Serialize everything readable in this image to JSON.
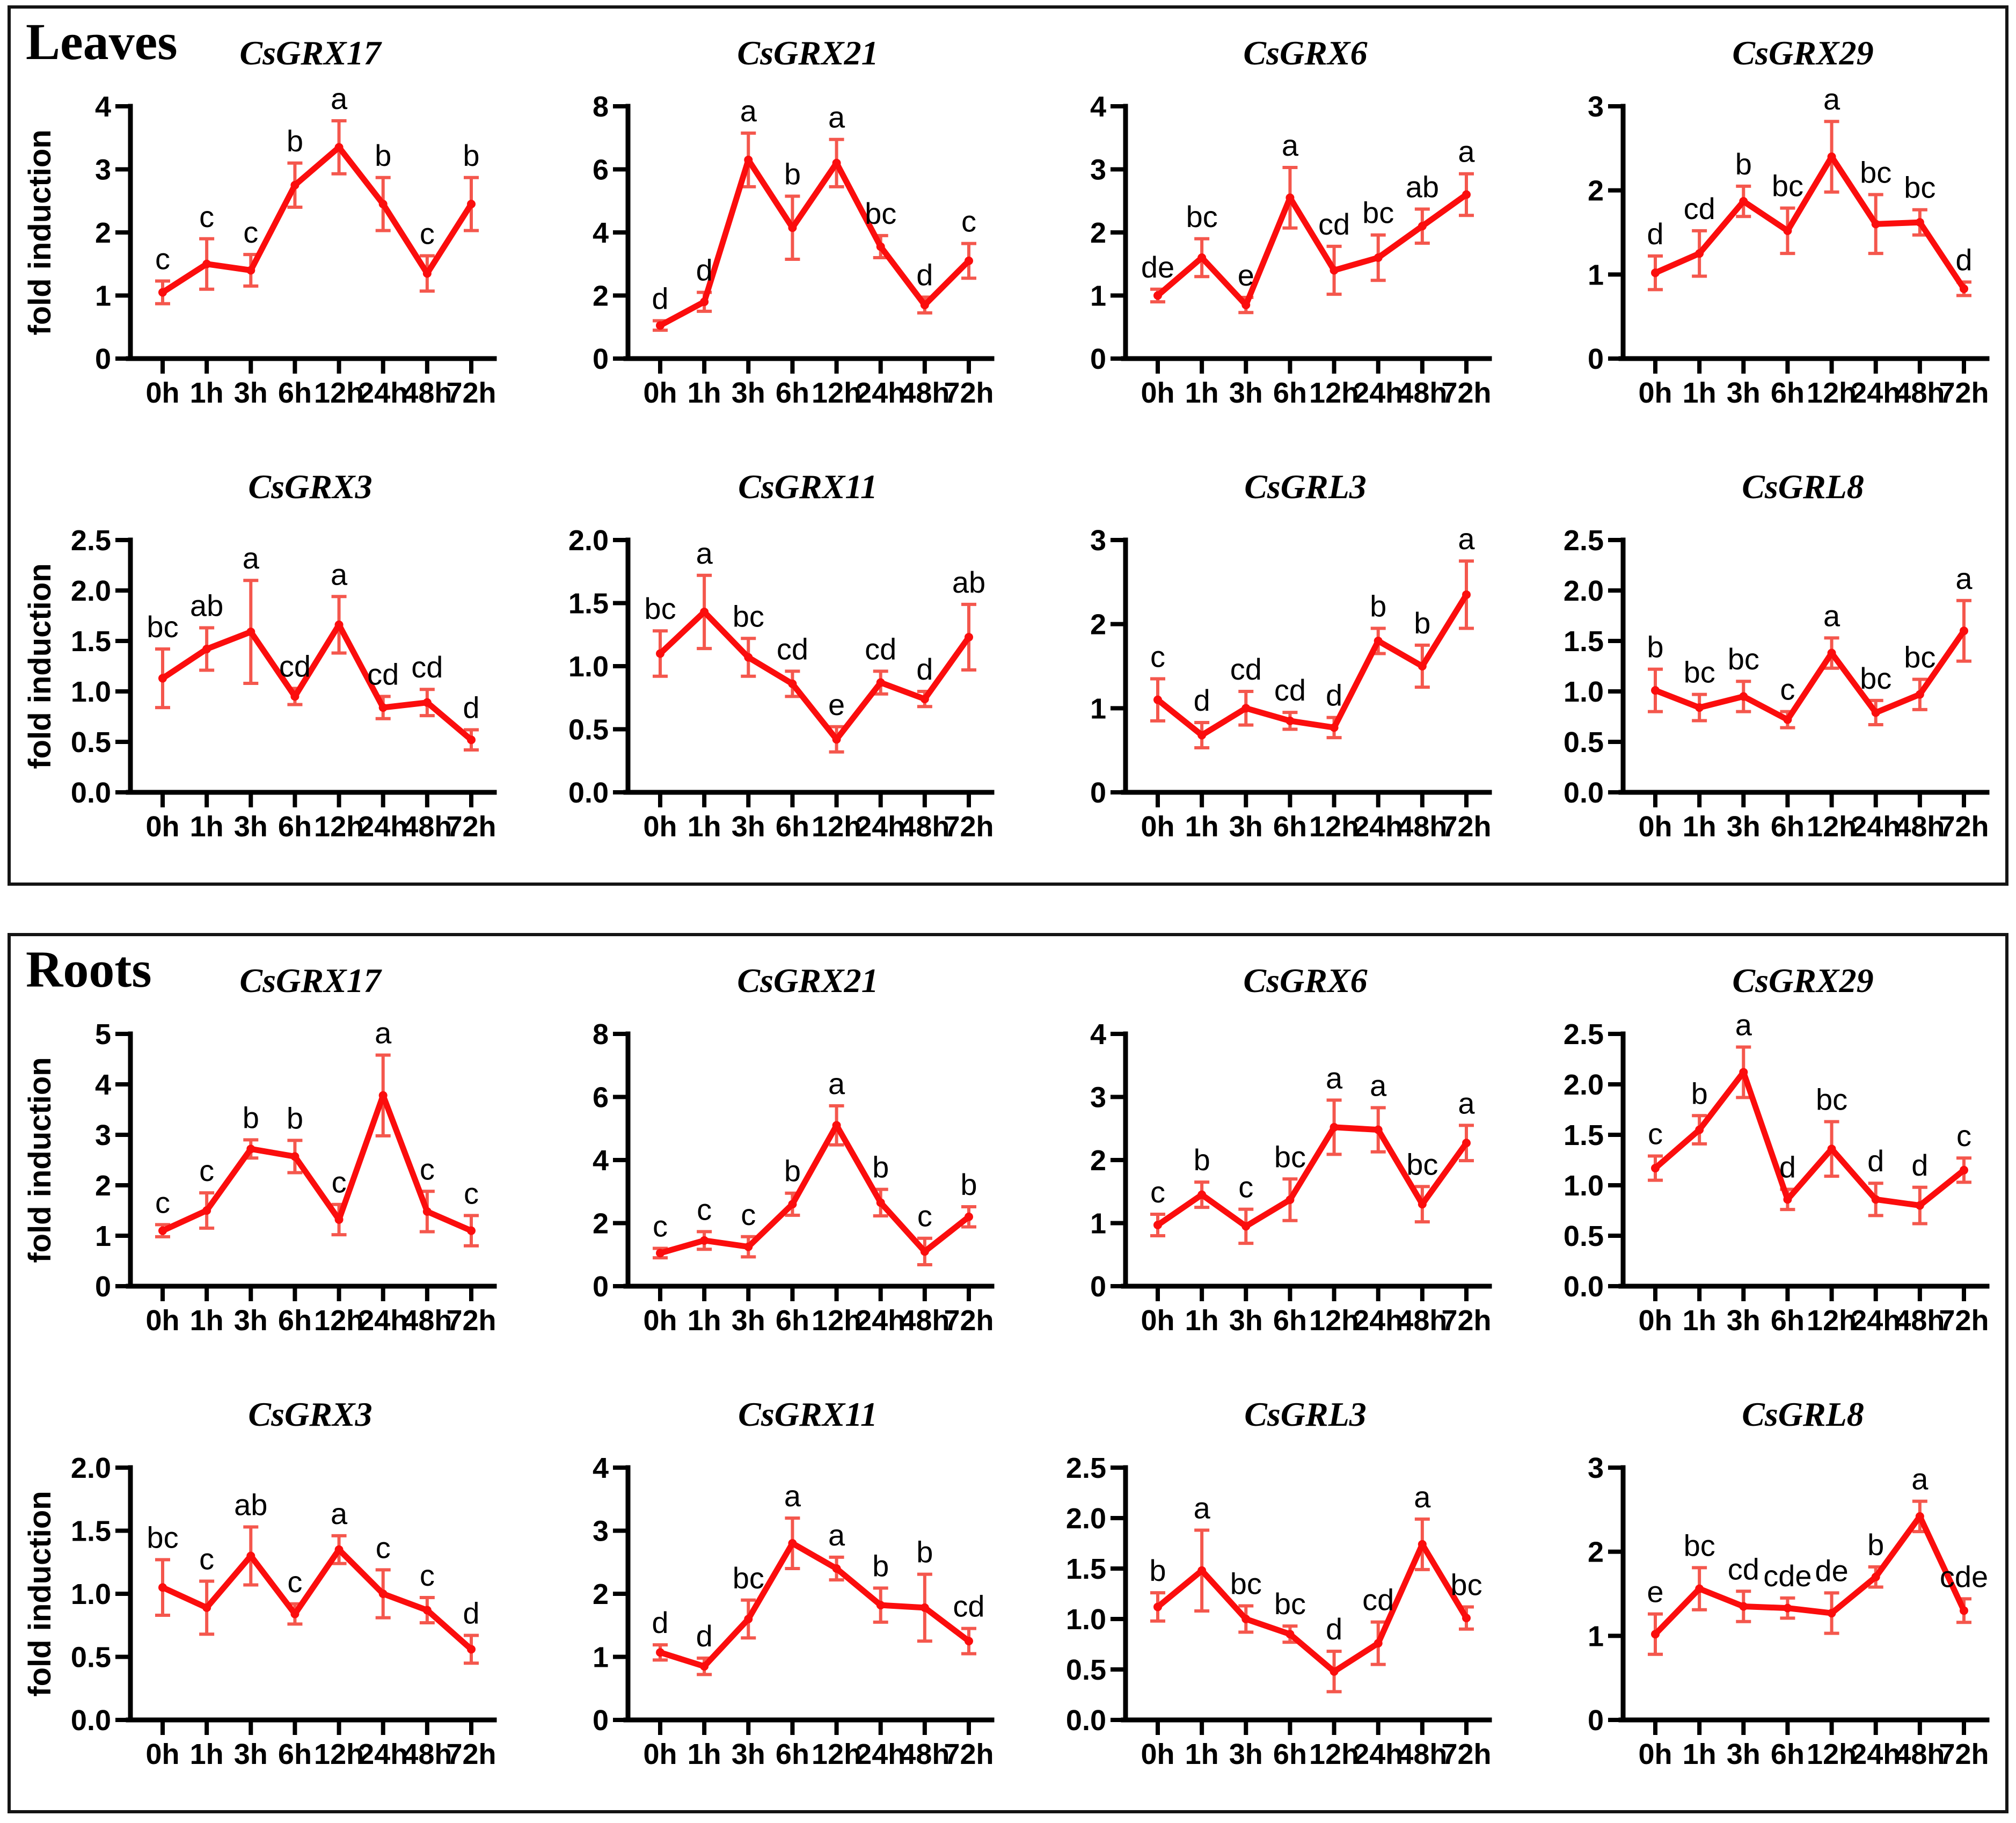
{
  "figure_title": "",
  "colors": {
    "line": "#fb0d0d",
    "error_bar": "#f4574d",
    "axis": "#000000",
    "text": "#000000",
    "panel_border": "#141414"
  },
  "chart_data": {
    "type": "line",
    "x_categories": [
      "0h",
      "1h",
      "3h",
      "6h",
      "12h",
      "24h",
      "48h",
      "72h"
    ],
    "ylabel": "fold induction",
    "legend": "none",
    "grid": false,
    "panels": [
      {
        "label": "Leaves",
        "charts": [
          {
            "title": "CsGRX17",
            "ylim": [
              0,
              4
            ],
            "ytick_step": 1,
            "decimals": 0,
            "show_ylabel": true,
            "values": [
              1.05,
              1.5,
              1.4,
              2.75,
              3.35,
              2.45,
              1.35,
              2.45
            ],
            "errors": [
              0.18,
              0.4,
              0.25,
              0.35,
              0.42,
              0.42,
              0.28,
              0.42
            ],
            "sig_letters": [
              "c",
              "c",
              "c",
              "b",
              "a",
              "b",
              "c",
              "b"
            ]
          },
          {
            "title": "CsGRX21",
            "ylim": [
              0,
              8
            ],
            "ytick_step": 2,
            "decimals": 0,
            "show_ylabel": false,
            "values": [
              1.05,
              1.8,
              6.3,
              4.15,
              6.2,
              3.55,
              1.7,
              3.1
            ],
            "errors": [
              0.15,
              0.3,
              0.85,
              1.0,
              0.75,
              0.35,
              0.25,
              0.55
            ],
            "sig_letters": [
              "d",
              "d",
              "a",
              "b",
              "a",
              "bc",
              "d",
              "c"
            ]
          },
          {
            "title": "CsGRX6",
            "ylim": [
              0,
              4
            ],
            "ytick_step": 1,
            "decimals": 0,
            "show_ylabel": false,
            "values": [
              1.0,
              1.6,
              0.85,
              2.55,
              1.4,
              1.6,
              2.1,
              2.6
            ],
            "errors": [
              0.1,
              0.3,
              0.12,
              0.48,
              0.38,
              0.36,
              0.27,
              0.33
            ],
            "sig_letters": [
              "de",
              "bc",
              "e",
              "a",
              "cd",
              "bc",
              "ab",
              "a"
            ]
          },
          {
            "title": "CsGRX29",
            "ylim": [
              0,
              3
            ],
            "ytick_step": 1,
            "decimals": 0,
            "show_ylabel": false,
            "values": [
              1.02,
              1.25,
              1.87,
              1.52,
              2.4,
              1.6,
              1.62,
              0.83
            ],
            "errors": [
              0.2,
              0.27,
              0.18,
              0.27,
              0.42,
              0.35,
              0.15,
              0.08
            ],
            "sig_letters": [
              "d",
              "cd",
              "b",
              "bc",
              "a",
              "bc",
              "bc",
              "d"
            ]
          },
          {
            "title": "CsGRX3",
            "ylim": [
              0,
              2.5
            ],
            "ytick_step": 0.5,
            "decimals": 1,
            "show_ylabel": true,
            "values": [
              1.13,
              1.42,
              1.59,
              0.95,
              1.66,
              0.84,
              0.89,
              0.52
            ],
            "errors": [
              0.29,
              0.21,
              0.51,
              0.08,
              0.28,
              0.11,
              0.13,
              0.1
            ],
            "sig_letters": [
              "bc",
              "ab",
              "a",
              "cd",
              "a",
              "cd",
              "cd",
              "d"
            ]
          },
          {
            "title": "CsGRX11",
            "ylim": [
              0,
              2.0
            ],
            "ytick_step": 0.5,
            "decimals": 1,
            "show_ylabel": false,
            "values": [
              1.1,
              1.43,
              1.07,
              0.86,
              0.42,
              0.87,
              0.74,
              1.23
            ],
            "errors": [
              0.18,
              0.29,
              0.15,
              0.1,
              0.1,
              0.09,
              0.06,
              0.26
            ],
            "sig_letters": [
              "bc",
              "a",
              "bc",
              "cd",
              "e",
              "cd",
              "d",
              "ab"
            ]
          },
          {
            "title": "CsGRL3",
            "ylim": [
              0,
              3
            ],
            "ytick_step": 1,
            "decimals": 0,
            "show_ylabel": false,
            "values": [
              1.1,
              0.68,
              1.0,
              0.85,
              0.77,
              1.8,
              1.5,
              2.35
            ],
            "errors": [
              0.25,
              0.15,
              0.2,
              0.1,
              0.12,
              0.15,
              0.25,
              0.4
            ],
            "sig_letters": [
              "c",
              "d",
              "cd",
              "cd",
              "d",
              "b",
              "b",
              "a"
            ]
          },
          {
            "title": "CsGRL8",
            "ylim": [
              0,
              2.5
            ],
            "ytick_step": 0.5,
            "decimals": 1,
            "show_ylabel": false,
            "values": [
              1.01,
              0.84,
              0.95,
              0.72,
              1.38,
              0.79,
              0.97,
              1.6
            ],
            "errors": [
              0.21,
              0.13,
              0.15,
              0.08,
              0.15,
              0.12,
              0.15,
              0.3
            ],
            "sig_letters": [
              "b",
              "bc",
              "bc",
              "c",
              "a",
              "bc",
              "bc",
              "a"
            ]
          }
        ]
      },
      {
        "label": "Roots",
        "charts": [
          {
            "title": "CsGRX17",
            "ylim": [
              0,
              5
            ],
            "ytick_step": 1,
            "decimals": 0,
            "show_ylabel": true,
            "values": [
              1.1,
              1.5,
              2.72,
              2.57,
              1.32,
              3.78,
              1.48,
              1.1
            ],
            "errors": [
              0.12,
              0.35,
              0.18,
              0.32,
              0.3,
              0.8,
              0.4,
              0.3
            ],
            "sig_letters": [
              "c",
              "c",
              "b",
              "b",
              "c",
              "a",
              "c",
              "c"
            ]
          },
          {
            "title": "CsGRX21",
            "ylim": [
              0,
              8
            ],
            "ytick_step": 2,
            "decimals": 0,
            "show_ylabel": false,
            "values": [
              1.05,
              1.45,
              1.25,
              2.6,
              5.1,
              2.65,
              1.1,
              2.2
            ],
            "errors": [
              0.15,
              0.28,
              0.32,
              0.35,
              0.62,
              0.42,
              0.42,
              0.32
            ],
            "sig_letters": [
              "c",
              "c",
              "c",
              "b",
              "a",
              "b",
              "c",
              "b"
            ]
          },
          {
            "title": "CsGRX6",
            "ylim": [
              0,
              4
            ],
            "ytick_step": 1,
            "decimals": 0,
            "show_ylabel": false,
            "values": [
              0.97,
              1.45,
              0.95,
              1.37,
              2.52,
              2.48,
              1.3,
              2.27
            ],
            "errors": [
              0.17,
              0.2,
              0.27,
              0.33,
              0.43,
              0.35,
              0.28,
              0.28
            ],
            "sig_letters": [
              "c",
              "b",
              "c",
              "bc",
              "a",
              "a",
              "bc",
              "a"
            ]
          },
          {
            "title": "CsGRX29",
            "ylim": [
              0,
              2.5
            ],
            "ytick_step": 0.5,
            "decimals": 1,
            "show_ylabel": false,
            "values": [
              1.17,
              1.55,
              2.12,
              0.86,
              1.36,
              0.86,
              0.8,
              1.15
            ],
            "errors": [
              0.12,
              0.14,
              0.25,
              0.1,
              0.27,
              0.16,
              0.18,
              0.12
            ],
            "sig_letters": [
              "c",
              "b",
              "a",
              "d",
              "bc",
              "d",
              "d",
              "c"
            ]
          },
          {
            "title": "CsGRX3",
            "ylim": [
              0,
              2.0
            ],
            "ytick_step": 0.5,
            "decimals": 1,
            "show_ylabel": true,
            "values": [
              1.05,
              0.89,
              1.3,
              0.84,
              1.35,
              1.0,
              0.87,
              0.56
            ],
            "errors": [
              0.22,
              0.21,
              0.23,
              0.08,
              0.11,
              0.19,
              0.1,
              0.11
            ],
            "sig_letters": [
              "bc",
              "c",
              "ab",
              "c",
              "a",
              "c",
              "c",
              "d"
            ]
          },
          {
            "title": "CsGRX11",
            "ylim": [
              0,
              4
            ],
            "ytick_step": 1,
            "decimals": 0,
            "show_ylabel": false,
            "values": [
              1.07,
              0.85,
              1.6,
              2.8,
              2.4,
              1.82,
              1.78,
              1.25
            ],
            "errors": [
              0.12,
              0.13,
              0.3,
              0.4,
              0.18,
              0.27,
              0.53,
              0.2
            ],
            "sig_letters": [
              "d",
              "d",
              "bc",
              "a",
              "a",
              "b",
              "b",
              "cd"
            ]
          },
          {
            "title": "CsGRL3",
            "ylim": [
              0,
              2.5
            ],
            "ytick_step": 0.5,
            "decimals": 1,
            "show_ylabel": false,
            "values": [
              1.12,
              1.48,
              1.0,
              0.85,
              0.48,
              0.76,
              1.74,
              1.01
            ],
            "errors": [
              0.14,
              0.4,
              0.13,
              0.08,
              0.2,
              0.21,
              0.25,
              0.11
            ],
            "sig_letters": [
              "b",
              "a",
              "bc",
              "bc",
              "d",
              "cd",
              "a",
              "bc"
            ]
          },
          {
            "title": "CsGRL8",
            "ylim": [
              0,
              3
            ],
            "ytick_step": 1,
            "decimals": 0,
            "show_ylabel": false,
            "values": [
              1.02,
              1.56,
              1.35,
              1.33,
              1.27,
              1.7,
              2.42,
              1.3
            ],
            "errors": [
              0.24,
              0.25,
              0.18,
              0.12,
              0.24,
              0.12,
              0.18,
              0.14
            ],
            "sig_letters": [
              "e",
              "bc",
              "cd",
              "cde",
              "de",
              "b",
              "a",
              "cde"
            ]
          }
        ]
      }
    ]
  }
}
